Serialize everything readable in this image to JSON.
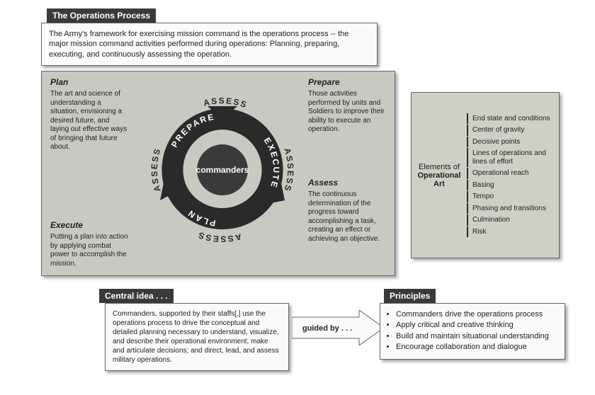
{
  "colors": {
    "dark": "#3a3a3a",
    "arrow": "#2a2a2a",
    "panel": "#c9c9c1",
    "opart_panel": "#cfcfc3",
    "box_bg": "#fafafa",
    "border": "#666666",
    "text": "#222222",
    "white": "#ffffff"
  },
  "top": {
    "title": "The Operations Process",
    "intro": "The Army's framework for exercising mission command is the operations process -- the major mission command activities performed during operations: Planning, preparing, executing, and continuously assessing the operation."
  },
  "cycle": {
    "center": "commanders",
    "arrows": [
      "PLAN",
      "PREPARE",
      "EXECUTE"
    ],
    "outer_label": "ASSESS",
    "quads": {
      "plan": {
        "title": "Plan",
        "body": "The art and science of understanding a situation, envisioning a desired future, and laying out effective ways of bringing that future about."
      },
      "prepare": {
        "title": "Prepare",
        "body": "Those activities performed by units and Soldiers to improve their ability to execute an operation."
      },
      "execute": {
        "title": "Execute",
        "body": "Putting a plan into action by applying combat power to accomplish the mission."
      },
      "assess": {
        "title": "Assess",
        "body": "The continuous determination of the progress toward accomplishing a task, creating an effect or achieving an objective."
      }
    }
  },
  "opart": {
    "label_line1": "Elements of",
    "label_line2": "Operational Art",
    "items": [
      "End state and conditions",
      "Center of gravity",
      "Decisive points",
      "Lines of operations and lines of effort",
      "Operational reach",
      "Basing",
      "Tempo",
      "Phasing and transitions",
      "Culmination",
      "Risk"
    ]
  },
  "central": {
    "title": "Central idea . . .",
    "body": "Commanders, supported by their staffs[,] use the operations process to drive the conceptual and detailed planning necessary to understand, visualize, and describe their operational environment; make and articulate decisions; and direct, lead, and assess military operations."
  },
  "guided_by": "guided by . . .",
  "principles": {
    "title": "Principles",
    "items": [
      "Commanders drive the operations process",
      "Apply critical and creative thinking",
      "Build and maintain situational understanding",
      "Encourage collaboration and dialogue"
    ]
  }
}
